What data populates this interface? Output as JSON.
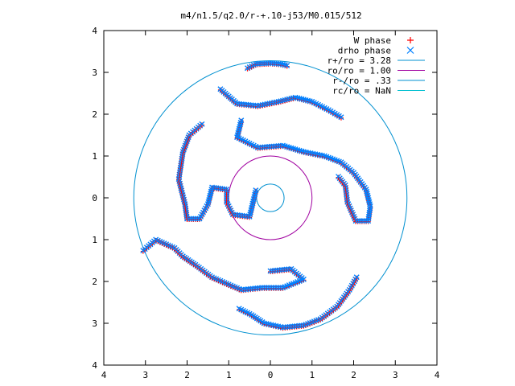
{
  "chart_data": {
    "type": "scatter",
    "title": "m4/n1.5/q2.0/r-+.10-j53/M0.015/512",
    "xlabel": "",
    "ylabel": "",
    "xlim": [
      -4,
      4
    ],
    "ylim": [
      -4,
      4
    ],
    "x_ticks": [
      -4,
      -3,
      -2,
      -1,
      0,
      1,
      2,
      3,
      4
    ],
    "y_ticks": [
      -4,
      -3,
      -2,
      -1,
      0,
      1,
      2,
      3,
      4
    ],
    "x_tick_labels": [
      "4",
      "3",
      "2",
      "1",
      "0",
      "1",
      "2",
      "3",
      "4"
    ],
    "y_tick_labels": [
      "4",
      "3",
      "2",
      "1",
      "0",
      "1",
      "2",
      "3",
      "4"
    ],
    "grid": false,
    "legend_position": "top-right",
    "series": [
      {
        "name": "W phase",
        "marker": "plus",
        "color": "#ff0000"
      },
      {
        "name": "drho phase",
        "marker": "cross",
        "color": "#0080ff"
      },
      {
        "name": "r+/ro = 3.28",
        "type": "circle",
        "radius": 3.28,
        "color": "#0090d0"
      },
      {
        "name": "ro/ro = 1.00",
        "type": "circle",
        "radius": 1.0,
        "color": "#a000a0"
      },
      {
        "name": "r-/ro = .33",
        "type": "circle",
        "radius": 0.33,
        "color": "#0090d0"
      },
      {
        "name": "rc/ro = NaN",
        "type": "circle",
        "radius": null,
        "color": "#00c0d0"
      }
    ],
    "arm_tracks": [
      [
        [
          -0.55,
          3.1
        ],
        [
          -0.35,
          3.2
        ],
        [
          0.0,
          3.22
        ],
        [
          0.25,
          3.2
        ],
        [
          0.45,
          3.15
        ]
      ],
      [
        [
          -1.2,
          2.6
        ],
        [
          -0.8,
          2.25
        ],
        [
          -0.3,
          2.2
        ],
        [
          0.2,
          2.3
        ],
        [
          0.6,
          2.4
        ],
        [
          1.0,
          2.3
        ],
        [
          1.4,
          2.1
        ],
        [
          1.75,
          1.9
        ]
      ],
      [
        [
          -0.7,
          1.85
        ],
        [
          -0.8,
          1.45
        ],
        [
          -0.3,
          1.2
        ],
        [
          0.3,
          1.25
        ],
        [
          0.8,
          1.1
        ],
        [
          1.3,
          1.0
        ],
        [
          1.7,
          0.85
        ],
        [
          2.0,
          0.6
        ],
        [
          2.3,
          0.2
        ],
        [
          2.4,
          -0.2
        ],
        [
          2.35,
          -0.55
        ],
        [
          2.05,
          -0.55
        ],
        [
          1.85,
          -0.1
        ],
        [
          1.8,
          0.3
        ],
        [
          1.6,
          0.55
        ]
      ],
      [
        [
          -0.35,
          0.18
        ],
        [
          -0.5,
          -0.45
        ],
        [
          -0.9,
          -0.4
        ],
        [
          -1.05,
          -0.1
        ],
        [
          -1.05,
          0.2
        ],
        [
          -1.4,
          0.25
        ],
        [
          -1.5,
          -0.15
        ],
        [
          -1.7,
          -0.5
        ],
        [
          -2.0,
          -0.5
        ],
        [
          -2.05,
          -0.15
        ],
        [
          -2.2,
          0.45
        ],
        [
          -2.1,
          1.1
        ],
        [
          -1.95,
          1.5
        ],
        [
          -1.6,
          1.8
        ]
      ],
      [
        [
          0.0,
          -1.75
        ],
        [
          0.5,
          -1.7
        ],
        [
          0.8,
          -1.95
        ],
        [
          0.3,
          -2.15
        ],
        [
          -0.2,
          -2.15
        ],
        [
          -0.7,
          -2.2
        ],
        [
          -1.05,
          -2.05
        ],
        [
          -1.4,
          -1.9
        ],
        [
          -1.8,
          -1.6
        ],
        [
          -2.1,
          -1.4
        ],
        [
          -2.3,
          -1.2
        ],
        [
          -2.75,
          -1.0
        ],
        [
          -3.1,
          -1.3
        ]
      ],
      [
        [
          -0.75,
          -2.65
        ],
        [
          -0.45,
          -2.8
        ],
        [
          -0.15,
          -3.0
        ],
        [
          0.3,
          -3.1
        ],
        [
          0.8,
          -3.05
        ],
        [
          1.2,
          -2.9
        ],
        [
          1.6,
          -2.6
        ],
        [
          1.9,
          -2.2
        ],
        [
          2.1,
          -1.85
        ]
      ]
    ]
  }
}
